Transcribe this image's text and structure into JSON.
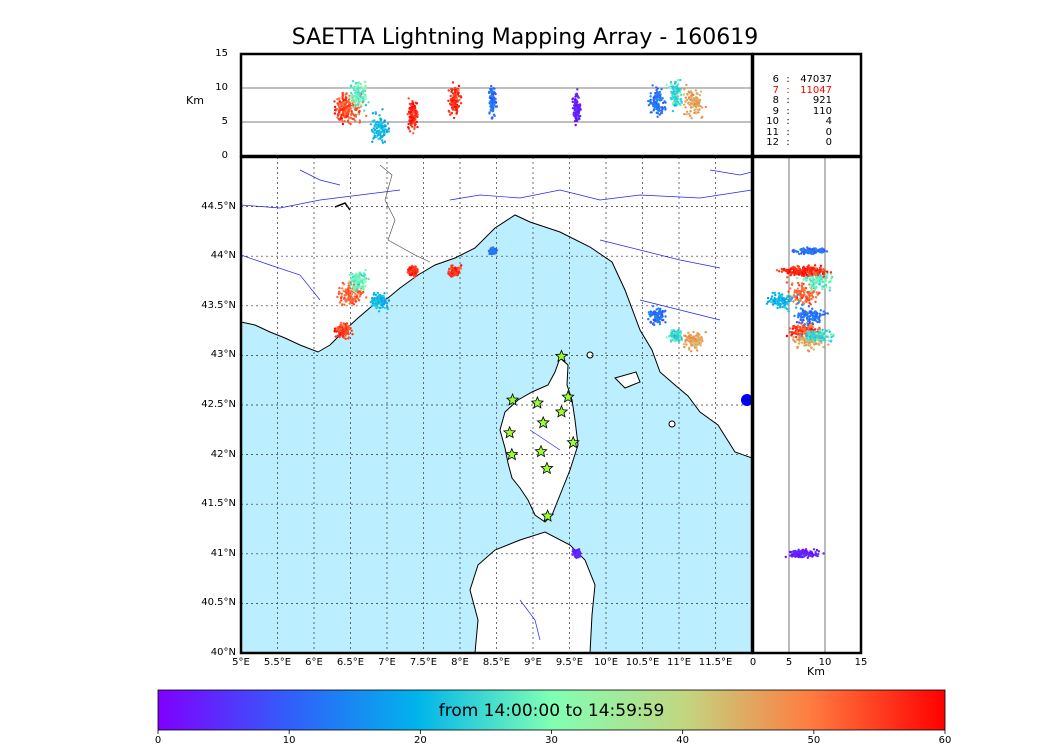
{
  "chart_data": {
    "type": "scatter",
    "title": "SAETTA Lightning Mapping Array - 160619",
    "colorbar": {
      "label": "from 14:00:00 to 14:59:59",
      "ticks": [
        0,
        10,
        20,
        30,
        40,
        50,
        60
      ],
      "range": [
        0,
        60
      ],
      "colormap": "rainbow"
    },
    "map": {
      "lon_range": [
        5.0,
        12.0
      ],
      "lat_range": [
        40.0,
        45.0
      ],
      "lon_ticks": [
        "5°E",
        "5.5°E",
        "6°E",
        "6.5°E",
        "7°E",
        "7.5°E",
        "8°E",
        "8.5°E",
        "9°E",
        "9.5°E",
        "10°E",
        "10.5°E",
        "11°E",
        "11.5°E"
      ],
      "lat_ticks": [
        "40°N",
        "40.5°N",
        "41°N",
        "41.5°N",
        "42°N",
        "42.5°N",
        "43°N",
        "43.5°N",
        "44°N",
        "44.5°N"
      ],
      "sea_color": "#bbeeff",
      "grid": "dotted",
      "stations": [
        {
          "lon": 9.39,
          "lat": 42.99
        },
        {
          "lon": 8.72,
          "lat": 42.55
        },
        {
          "lon": 9.06,
          "lat": 42.52
        },
        {
          "lon": 9.48,
          "lat": 42.58
        },
        {
          "lon": 9.39,
          "lat": 42.43
        },
        {
          "lon": 9.14,
          "lat": 42.32
        },
        {
          "lon": 8.68,
          "lat": 42.22
        },
        {
          "lon": 9.55,
          "lat": 42.12
        },
        {
          "lon": 8.71,
          "lat": 42.0
        },
        {
          "lon": 9.11,
          "lat": 42.03
        },
        {
          "lon": 9.19,
          "lat": 41.86
        },
        {
          "lon": 9.2,
          "lat": 41.38
        }
      ]
    },
    "altitude_panels": {
      "ylabel": "Km",
      "xlabel": "Km",
      "alt_range": [
        0,
        15
      ],
      "alt_ticks": [
        0,
        5,
        10,
        15
      ],
      "reference_lines_km": [
        5,
        9.5
      ]
    },
    "clusters": [
      {
        "lon": 6.5,
        "lat": 43.62,
        "time_min": 52,
        "alt": 7,
        "spread": 0.15
      },
      {
        "lon": 6.6,
        "lat": 43.75,
        "time_min": 28,
        "alt": 9,
        "spread": 0.12
      },
      {
        "lon": 6.9,
        "lat": 43.55,
        "time_min": 20,
        "alt": 4,
        "spread": 0.1
      },
      {
        "lon": 6.4,
        "lat": 43.25,
        "time_min": 55,
        "alt": 7,
        "spread": 0.1
      },
      {
        "lon": 7.35,
        "lat": 43.85,
        "time_min": 57,
        "alt": 6,
        "spread": 0.06
      },
      {
        "lon": 7.93,
        "lat": 43.85,
        "time_min": 56,
        "alt": 8,
        "spread": 0.07
      },
      {
        "lon": 8.45,
        "lat": 44.05,
        "time_min": 12,
        "alt": 8,
        "spread": 0.04
      },
      {
        "lon": 9.6,
        "lat": 41.0,
        "time_min": 3,
        "alt": 7,
        "spread": 0.05
      },
      {
        "lon": 10.7,
        "lat": 43.4,
        "time_min": 12,
        "alt": 8,
        "spread": 0.1
      },
      {
        "lon": 11.2,
        "lat": 43.15,
        "time_min": 45,
        "alt": 8,
        "spread": 0.12
      },
      {
        "lon": 10.95,
        "lat": 43.2,
        "time_min": 25,
        "alt": 9,
        "spread": 0.08
      }
    ],
    "counts": [
      {
        "level": "6",
        "value": "47037",
        "color": "#000000"
      },
      {
        "level": "7",
        "value": "11047",
        "color": "#ff0000"
      },
      {
        "level": "8",
        "value": "921",
        "color": "#000000"
      },
      {
        "level": "9",
        "value": "110",
        "color": "#000000"
      },
      {
        "level": "10",
        "value": "4",
        "color": "#000000"
      },
      {
        "level": "11",
        "value": "0",
        "color": "#000000"
      },
      {
        "level": "12",
        "value": "0",
        "color": "#000000"
      }
    ]
  }
}
